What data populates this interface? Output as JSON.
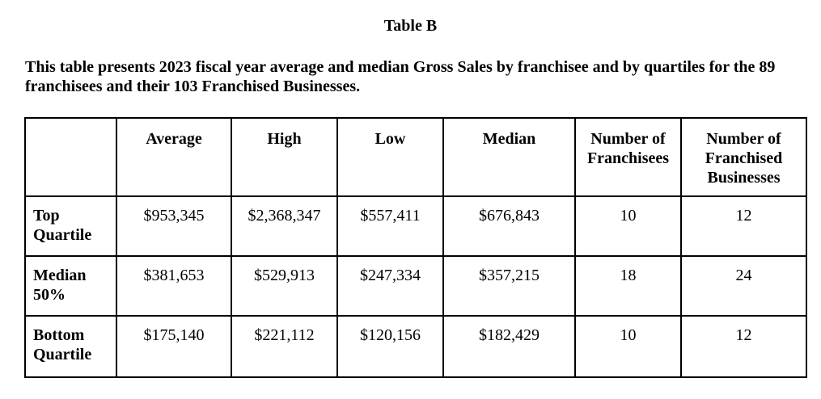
{
  "title": "Table B",
  "intro": "This table presents 2023 fiscal year average and median Gross Sales by franchisee and by quartiles for the 89 franchisees and their 103 Franchised Businesses.",
  "table": {
    "headers": [
      "",
      "Average",
      "High",
      "Low",
      "Median",
      "Number of Franchisees",
      "Number of Franchised Businesses"
    ],
    "rows": [
      {
        "label": "Top Quartile",
        "cells": [
          "$953,345",
          "$2,368,347",
          "$557,411",
          "$676,843",
          "10",
          "12"
        ]
      },
      {
        "label": "Median 50%",
        "cells": [
          "$381,653",
          "$529,913",
          "$247,334",
          "$357,215",
          "18",
          "24"
        ]
      },
      {
        "label": "Bottom Quartile",
        "cells": [
          "$175,140",
          "$221,112",
          "$120,156",
          "$182,429",
          "10",
          "12"
        ]
      }
    ]
  }
}
